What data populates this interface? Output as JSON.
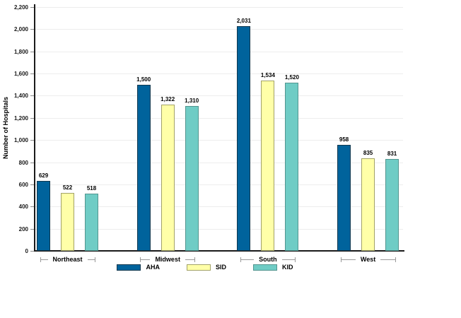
{
  "chart_data": {
    "type": "bar",
    "title": "",
    "xlabel": "",
    "ylabel": "Number of Hospitals",
    "categories": [
      "Northeast",
      "Midwest",
      "South",
      "West"
    ],
    "series": [
      {
        "name": "AHA",
        "color": "#00639C",
        "border_color": "#12384e",
        "values": [
          629,
          1500,
          2031,
          958
        ]
      },
      {
        "name": "SID",
        "color": "#FFFFA8",
        "border_color": "#a2a268",
        "values": [
          522,
          1322,
          1534,
          835
        ]
      },
      {
        "name": "KID",
        "color": "#6FCCC5",
        "border_color": "#53958f",
        "values": [
          518,
          1310,
          1520,
          831
        ]
      }
    ],
    "ylim": [
      0,
      2200
    ],
    "ytick_step": 200,
    "grid": true,
    "gridline_color": "#ededed",
    "legend_position": "bottom",
    "value_labels_shown": true
  }
}
